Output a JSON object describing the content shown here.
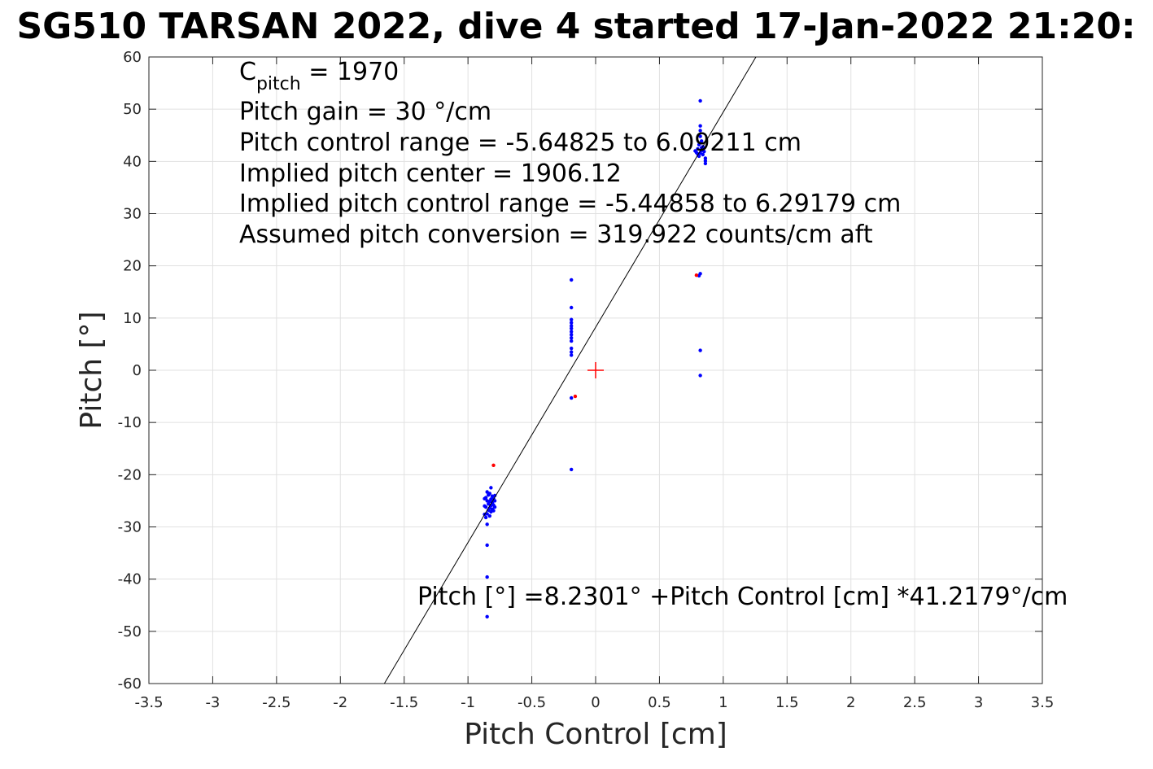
{
  "chart_data": {
    "type": "scatter",
    "title": "SG510 TARSAN 2022, dive 4 started 17-Jan-2022 21:20:",
    "xlabel": "Pitch Control [cm]",
    "ylabel": "Pitch [°]",
    "xlim": [
      -3.5,
      3.5
    ],
    "ylim": [
      -60,
      60
    ],
    "xticks": [
      -3.5,
      -3,
      -2.5,
      -2,
      -1.5,
      -1,
      -0.5,
      0,
      0.5,
      1,
      1.5,
      2,
      2.5,
      3,
      3.5
    ],
    "yticks": [
      60,
      50,
      40,
      30,
      20,
      10,
      0,
      -10,
      -20,
      -30,
      -40,
      -50,
      -60
    ],
    "xtick_labels": [
      "-3.5",
      "-3",
      "-2.5",
      "-2",
      "-1.5",
      "-1",
      "-0.5",
      "0",
      "0.5",
      "1",
      "1.5",
      "2",
      "2.5",
      "3",
      "3.5"
    ],
    "ytick_labels": [
      "60",
      "50",
      "40",
      "30",
      "20",
      "10",
      "0",
      "-10",
      "-20",
      "-30",
      "-40",
      "-50",
      "-60"
    ],
    "grid": true,
    "annotations": {
      "cpitch_symbol": "C",
      "cpitch_subscript": "pitch",
      "cpitch_value": " = 1970",
      "lines": [
        "Pitch gain = 30 °/cm",
        "Pitch control range = -5.64825 to 6.09211 cm",
        "Implied pitch center = 1906.12",
        "Implied pitch control range = -5.44858 to 6.29179 cm",
        "Assumed pitch conversion = 319.922 counts/cm aft"
      ],
      "fit_label": "Pitch [°] =8.2301° +Pitch Control [cm] *41.2179°/cm"
    },
    "fit_line": {
      "intercept": 8.2301,
      "slope": 41.2179
    },
    "center_marker": {
      "x": 0,
      "y": 0
    },
    "series": [
      {
        "color": "#0000ff",
        "points": [
          [
            -0.85,
            -47.2
          ],
          [
            -0.85,
            -39.6
          ],
          [
            -0.85,
            -33.5
          ],
          [
            -0.85,
            -29.5
          ],
          [
            -0.86,
            -28.2
          ],
          [
            -0.85,
            -27.5
          ],
          [
            -0.84,
            -26.8
          ],
          [
            -0.86,
            -26.2
          ],
          [
            -0.84,
            -25.6
          ],
          [
            -0.85,
            -25.0
          ],
          [
            -0.86,
            -24.4
          ],
          [
            -0.84,
            -23.9
          ],
          [
            -0.85,
            -23.3
          ],
          [
            -0.83,
            -27.9
          ],
          [
            -0.83,
            -26.4
          ],
          [
            -0.83,
            -25.1
          ],
          [
            -0.83,
            -23.6
          ],
          [
            -0.82,
            -27.1
          ],
          [
            -0.82,
            -25.9
          ],
          [
            -0.82,
            -24.7
          ],
          [
            -0.82,
            -22.5
          ],
          [
            -0.81,
            -26.6
          ],
          [
            -0.81,
            -25.3
          ],
          [
            -0.81,
            -24.1
          ],
          [
            -0.8,
            -26.9
          ],
          [
            -0.8,
            -25.8
          ],
          [
            -0.8,
            -24.6
          ],
          [
            -0.79,
            -26.2
          ],
          [
            -0.79,
            -25.0
          ],
          [
            -0.79,
            -24.0
          ],
          [
            -0.87,
            -27.6
          ],
          [
            -0.87,
            -26.0
          ],
          [
            -0.87,
            -24.6
          ],
          [
            -0.19,
            17.3
          ],
          [
            -0.19,
            12.0
          ],
          [
            -0.19,
            9.7
          ],
          [
            -0.19,
            9.1
          ],
          [
            -0.19,
            8.5
          ],
          [
            -0.19,
            8.0
          ],
          [
            -0.19,
            7.4
          ],
          [
            -0.19,
            6.8
          ],
          [
            -0.19,
            6.2
          ],
          [
            -0.19,
            5.6
          ],
          [
            -0.19,
            4.2
          ],
          [
            -0.19,
            3.5
          ],
          [
            -0.19,
            2.9
          ],
          [
            -0.19,
            -5.3
          ],
          [
            -0.19,
            -19.0
          ],
          [
            0.82,
            51.6
          ],
          [
            0.82,
            46.8
          ],
          [
            0.82,
            45.9
          ],
          [
            0.82,
            44.8
          ],
          [
            0.83,
            43.9
          ],
          [
            0.81,
            43.2
          ],
          [
            0.84,
            42.8
          ],
          [
            0.8,
            42.4
          ],
          [
            0.83,
            42.1
          ],
          [
            0.85,
            41.9
          ],
          [
            0.79,
            41.7
          ],
          [
            0.82,
            41.6
          ],
          [
            0.84,
            41.3
          ],
          [
            0.81,
            41.0
          ],
          [
            0.78,
            42.0
          ],
          [
            0.86,
            40.6
          ],
          [
            0.86,
            40.1
          ],
          [
            0.86,
            39.6
          ],
          [
            0.83,
            42.6
          ],
          [
            0.8,
            41.4
          ],
          [
            0.82,
            18.5
          ],
          [
            0.81,
            18.1
          ],
          [
            0.82,
            3.8
          ],
          [
            0.82,
            -1.0
          ]
        ]
      },
      {
        "color": "#ff0000",
        "points": [
          [
            -0.8,
            -18.2
          ],
          [
            -0.16,
            -5.0
          ],
          [
            0.79,
            18.2
          ]
        ]
      }
    ]
  }
}
